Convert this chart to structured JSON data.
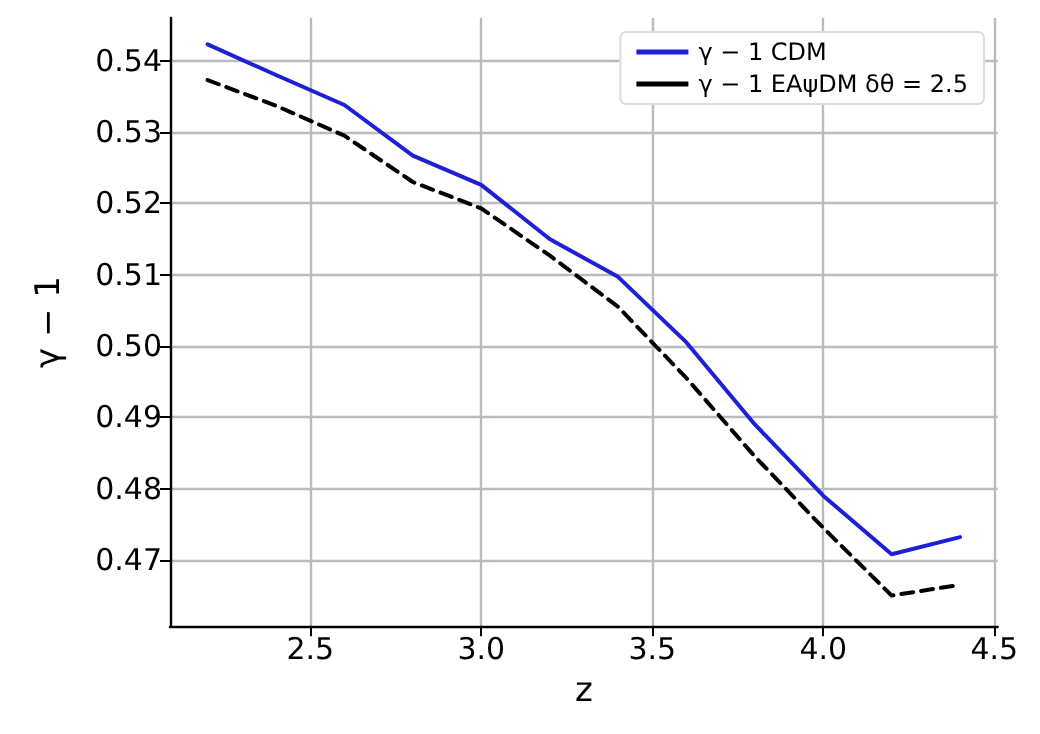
{
  "chart_data": {
    "type": "line",
    "xlabel": "z",
    "ylabel": "γ − 1",
    "xlim": [
      2.09,
      4.51
    ],
    "xticks": [
      2.5,
      {
        "value": 3,
        "label": "3.0"
      },
      3.5,
      {
        "value": 4,
        "label": "4.0"
      },
      4.5
    ],
    "ylim": [
      0.4607,
      0.546
    ],
    "yticks": [
      0.47,
      0.48,
      0.49,
      {
        "value": 0.5,
        "label": "0.50"
      },
      0.51,
      0.52,
      0.53,
      0.54
    ],
    "grid": true,
    "legend": "top right",
    "marker": "none",
    "x": [
      2.2,
      2.4,
      2.6,
      2.8,
      3.0,
      3.2,
      3.4,
      3.6,
      3.8,
      4.0,
      4.2,
      4.4
    ],
    "series": [
      {
        "name": "γ − 1 CDM",
        "color": "#1f1fd6",
        "line_style": "solid",
        "values": [
          0.5423,
          0.538,
          0.5338,
          0.5267,
          0.5226,
          0.515,
          0.5097,
          0.5005,
          0.489,
          0.479,
          0.4708,
          0.4732
        ]
      },
      {
        "name": "γ − 1 EAψDM δθ = 2.5",
        "color": "#000000",
        "line_style": "dashed",
        "values": [
          0.5373,
          0.5337,
          0.5295,
          0.523,
          0.5193,
          0.5127,
          0.5055,
          0.4955,
          0.4845,
          0.4745,
          0.465,
          0.4665
        ]
      }
    ]
  }
}
